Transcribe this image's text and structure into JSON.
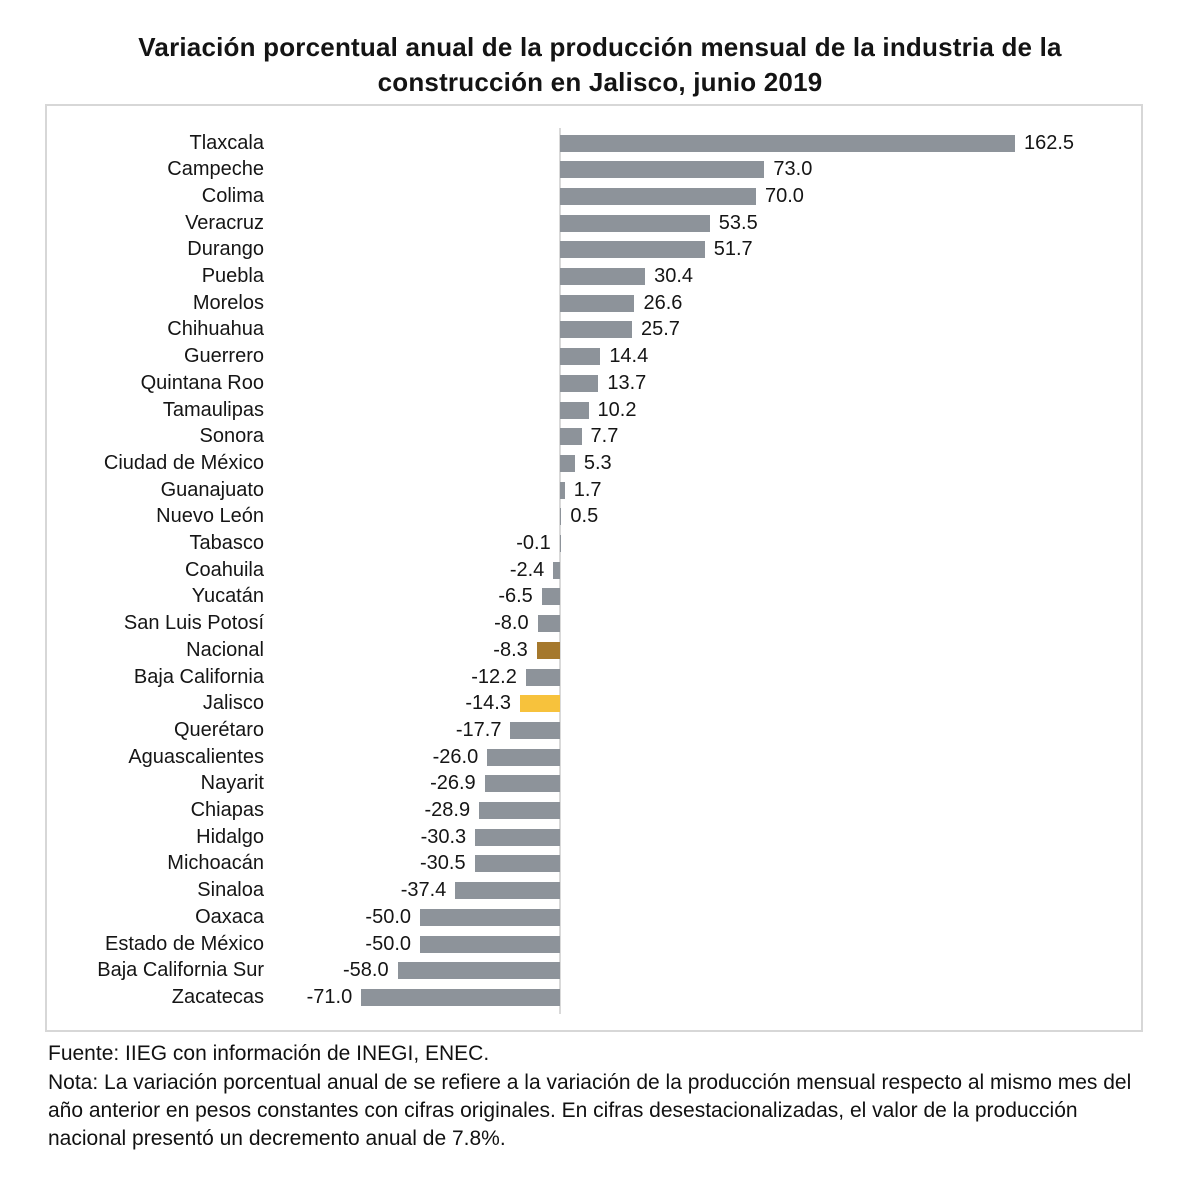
{
  "title": "Variación porcentual anual de la producción mensual de la industria de la construcción en Jalisco, junio 2019",
  "chart_data": {
    "type": "bar",
    "orientation": "horizontal",
    "title": "Variación porcentual anual de la producción mensual de la industria de la construcción en Jalisco, junio 2019",
    "xlabel": "",
    "ylabel": "",
    "xlim": [
      -80,
      170
    ],
    "grid": false,
    "legend": false,
    "value_label_decimals": 1,
    "categories": [
      "Tlaxcala",
      "Campeche",
      "Colima",
      "Veracruz",
      "Durango",
      "Puebla",
      "Morelos",
      "Chihuahua",
      "Guerrero",
      "Quintana Roo",
      "Tamaulipas",
      "Sonora",
      "Ciudad de México",
      "Guanajuato",
      "Nuevo León",
      "Tabasco",
      "Coahuila",
      "Yucatán",
      "San Luis Potosí",
      "Nacional",
      "Baja California",
      "Jalisco",
      "Querétaro",
      "Aguascalientes",
      "Nayarit",
      "Chiapas",
      "Hidalgo",
      "Michoacán",
      "Sinaloa",
      "Oaxaca",
      "Estado de México",
      "Baja California Sur",
      "Zacatecas"
    ],
    "values": [
      162.5,
      73.0,
      70.0,
      53.5,
      51.7,
      30.4,
      26.6,
      25.7,
      14.4,
      13.7,
      10.2,
      7.7,
      5.3,
      1.7,
      0.5,
      -0.1,
      -2.4,
      -6.5,
      -8.0,
      -8.3,
      -12.2,
      -14.3,
      -17.7,
      -26.0,
      -26.9,
      -28.9,
      -30.3,
      -30.5,
      -37.4,
      -50.0,
      -50.0,
      -58.0,
      -71.0
    ],
    "bar_color_default": "#8d939a",
    "bar_color_overrides": {
      "Nacional": "#a5782c",
      "Jalisco": "#f7c23c"
    },
    "zero_axis_color": "#d9d9d9",
    "plot_border_color": "#d7d7d7"
  },
  "footer": {
    "fuente": "Fuente: IIEG con información de INEGI, ENEC.",
    "nota": "Nota: La variación porcentual anual de se refiere a la variación de la producción mensual respecto al mismo mes del año anterior en pesos constantes con cifras originales. En cifras desestacionalizadas, el valor de la producción nacional presentó un decremento anual de 7.8%."
  }
}
